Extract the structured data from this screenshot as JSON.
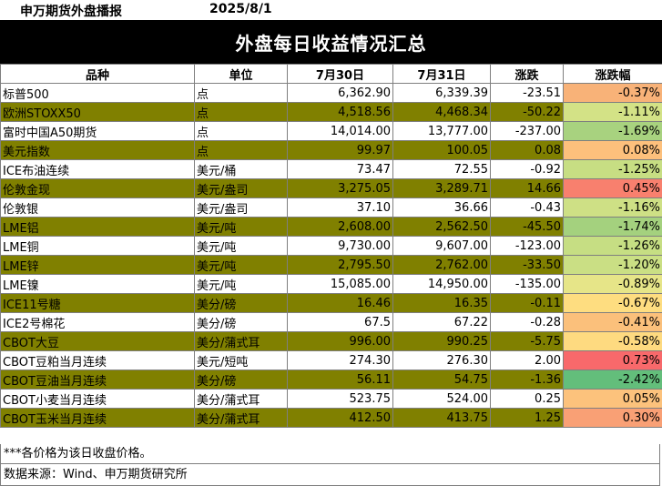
{
  "header": {
    "brand": "申万期货外盘播报",
    "date": "2025/8/1"
  },
  "title": "外盘每日收益情况汇总",
  "columns": [
    "品种",
    "单位",
    "7月30日",
    "7月31日",
    "涨跌",
    "涨跌幅"
  ],
  "rows": [
    {
      "name": "标普500",
      "unit": "点",
      "d1": "6,362.90",
      "d2": "6,339.39",
      "chg": "-23.51",
      "pct": "-0.37%",
      "pct_color": "#F8B278",
      "highlight": false
    },
    {
      "name": "欧洲STOXX50",
      "unit": "点",
      "d1": "4,518.56",
      "d2": "4,468.34",
      "chg": "-50.22",
      "pct": "-1.11%",
      "pct_color": "#D3E286",
      "highlight": true
    },
    {
      "name": "富时中国A50期货",
      "unit": "点",
      "d1": "14,014.00",
      "d2": "13,777.00",
      "chg": "-237.00",
      "pct": "-1.69%",
      "pct_color": "#A8D27F",
      "highlight": false
    },
    {
      "name": "美元指数",
      "unit": "点",
      "d1": "99.97",
      "d2": "100.05",
      "chg": "0.08",
      "pct": "0.08%",
      "pct_color": "#FDC07C",
      "highlight": true
    },
    {
      "name": "ICE布油连续",
      "unit": "美元/桶",
      "d1": "73.47",
      "d2": "72.55",
      "chg": "-0.92",
      "pct": "-1.25%",
      "pct_color": "#C7DE83",
      "highlight": false
    },
    {
      "name": "伦敦金现",
      "unit": "美元/盎司",
      "d1": "3,275.05",
      "d2": "3,289.71",
      "chg": "14.66",
      "pct": "0.45%",
      "pct_color": "#F8806E",
      "highlight": true
    },
    {
      "name": "伦敦银",
      "unit": "美元/盎司",
      "d1": "37.10",
      "d2": "36.66",
      "chg": "-0.43",
      "pct": "-1.16%",
      "pct_color": "#CEE085",
      "highlight": false
    },
    {
      "name": "LME铝",
      "unit": "美元/吨",
      "d1": "2,608.00",
      "d2": "2,562.50",
      "chg": "-45.50",
      "pct": "-1.74%",
      "pct_color": "#A4D17E",
      "highlight": true
    },
    {
      "name": "LME铜",
      "unit": "美元/吨",
      "d1": "9,730.00",
      "d2": "9,607.00",
      "chg": "-123.00",
      "pct": "-1.26%",
      "pct_color": "#C6DE83",
      "highlight": false
    },
    {
      "name": "LME锌",
      "unit": "美元/吨",
      "d1": "2,795.50",
      "d2": "2,762.00",
      "chg": "-33.50",
      "pct": "-1.20%",
      "pct_color": "#CADF84",
      "highlight": true
    },
    {
      "name": "LME镍",
      "unit": "美元/吨",
      "d1": "15,085.00",
      "d2": "14,950.00",
      "chg": "-135.00",
      "pct": "-0.89%",
      "pct_color": "#E6E588",
      "highlight": false
    },
    {
      "name": "ICE11号糖",
      "unit": "美分/磅",
      "d1": "16.46",
      "d2": "16.35",
      "chg": "-0.11",
      "pct": "-0.67%",
      "pct_color": "#FEDD80",
      "highlight": true
    },
    {
      "name": "ICE2号棉花",
      "unit": "美分/磅",
      "d1": "67.5",
      "d2": "67.22",
      "chg": "-0.28",
      "pct": "-0.41%",
      "pct_color": "#FBC07B",
      "highlight": false
    },
    {
      "name": "CBOT大豆",
      "unit": "美分/蒲式耳",
      "d1": "996.00",
      "d2": "990.25",
      "chg": "-5.75",
      "pct": "-0.58%",
      "pct_color": "#FEDA80",
      "highlight": true
    },
    {
      "name": "CBOT豆粕当月连续",
      "unit": "美元/短吨",
      "d1": "274.30",
      "d2": "276.30",
      "chg": "2.00",
      "pct": "0.73%",
      "pct_color": "#F8696B",
      "highlight": false
    },
    {
      "name": "CBOT豆油当月连续",
      "unit": "美分/磅",
      "d1": "56.11",
      "d2": "54.75",
      "chg": "-1.36",
      "pct": "-2.42%",
      "pct_color": "#63BE7B",
      "highlight": true
    },
    {
      "name": "CBOT小麦当月连续",
      "unit": "美分/蒲式耳",
      "d1": "523.75",
      "d2": "524.00",
      "chg": "0.25",
      "pct": "0.05%",
      "pct_color": "#FCC27C",
      "highlight": false
    },
    {
      "name": "CBOT玉米当月连续",
      "unit": "美分/蒲式耳",
      "d1": "412.50",
      "d2": "413.75",
      "chg": "1.25",
      "pct": "0.30%",
      "pct_color": "#F9A075",
      "highlight": true
    }
  ],
  "colors": {
    "highlight_row": "#808000",
    "title_bg": "#000000"
  },
  "footnote": "***各价格为该日收盘价格。",
  "source": "数据来源：Wind、申万期货研究所"
}
